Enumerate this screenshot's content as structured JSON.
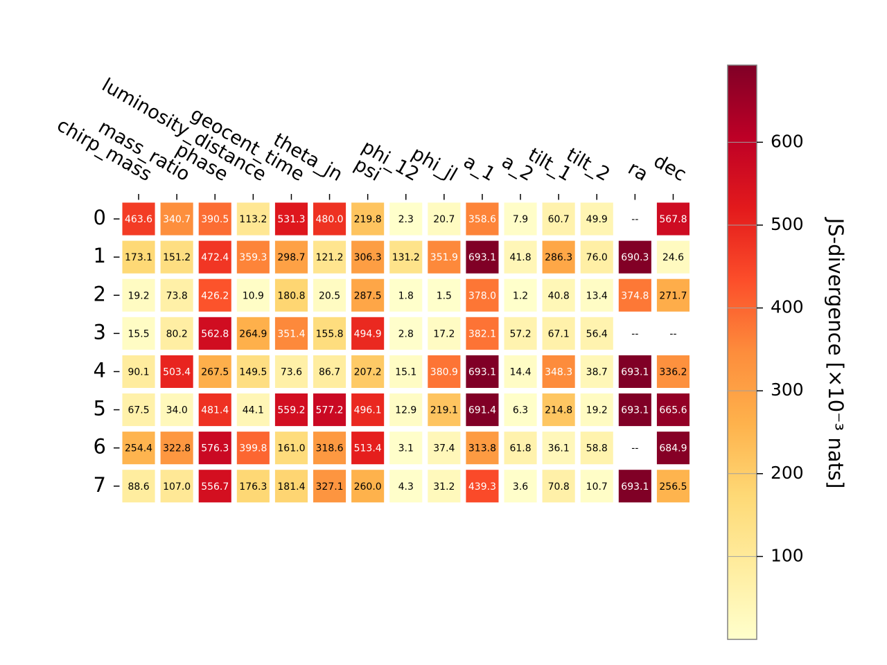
{
  "chart_data": {
    "type": "heatmap",
    "x_labels": [
      "chirp_mass",
      "mass_ratio",
      "phase",
      "luminosity_distance",
      "geocent_time",
      "theta_jn",
      "psi",
      "phi_12",
      "phi_jl",
      "a_1",
      "a_2",
      "tilt_1",
      "tilt_2",
      "ra",
      "dec"
    ],
    "y_labels": [
      "0",
      "1",
      "2",
      "3",
      "4",
      "5",
      "6",
      "7"
    ],
    "values": [
      [
        463.6,
        340.7,
        390.5,
        113.2,
        531.3,
        480.0,
        219.8,
        2.3,
        20.7,
        358.6,
        7.9,
        60.7,
        49.9,
        null,
        567.8
      ],
      [
        173.1,
        151.2,
        472.4,
        359.3,
        298.7,
        121.2,
        306.3,
        131.2,
        351.9,
        693.1,
        41.8,
        286.3,
        76.0,
        690.3,
        24.6
      ],
      [
        19.2,
        73.8,
        426.2,
        10.9,
        180.8,
        20.5,
        287.5,
        1.8,
        1.5,
        378.0,
        1.2,
        40.8,
        13.4,
        374.8,
        271.7
      ],
      [
        15.5,
        80.2,
        562.8,
        264.9,
        351.4,
        155.8,
        494.9,
        2.8,
        17.2,
        382.1,
        57.2,
        67.1,
        56.4,
        null,
        null
      ],
      [
        90.1,
        503.4,
        267.5,
        149.5,
        73.6,
        86.7,
        207.2,
        15.1,
        380.9,
        693.1,
        14.4,
        348.3,
        38.7,
        693.1,
        336.2
      ],
      [
        67.5,
        34.0,
        481.4,
        44.1,
        559.2,
        577.2,
        496.1,
        12.9,
        219.1,
        691.4,
        6.3,
        214.8,
        19.2,
        693.1,
        665.6
      ],
      [
        254.4,
        322.8,
        576.3,
        399.8,
        161.0,
        318.6,
        513.4,
        3.1,
        37.4,
        313.8,
        61.8,
        36.1,
        58.8,
        null,
        684.9
      ],
      [
        88.6,
        107.0,
        556.7,
        176.3,
        181.4,
        327.1,
        260.0,
        4.3,
        31.2,
        439.3,
        3.6,
        70.8,
        10.7,
        693.1,
        256.5
      ]
    ],
    "missing_label": "--",
    "colormap": "YlOrRd",
    "colorbar": {
      "label": "JS-divergence [×10⁻³ nats]",
      "ticks": [
        100,
        200,
        300,
        400,
        500,
        600
      ],
      "range": [
        0,
        693.1
      ]
    },
    "legend": "none"
  }
}
